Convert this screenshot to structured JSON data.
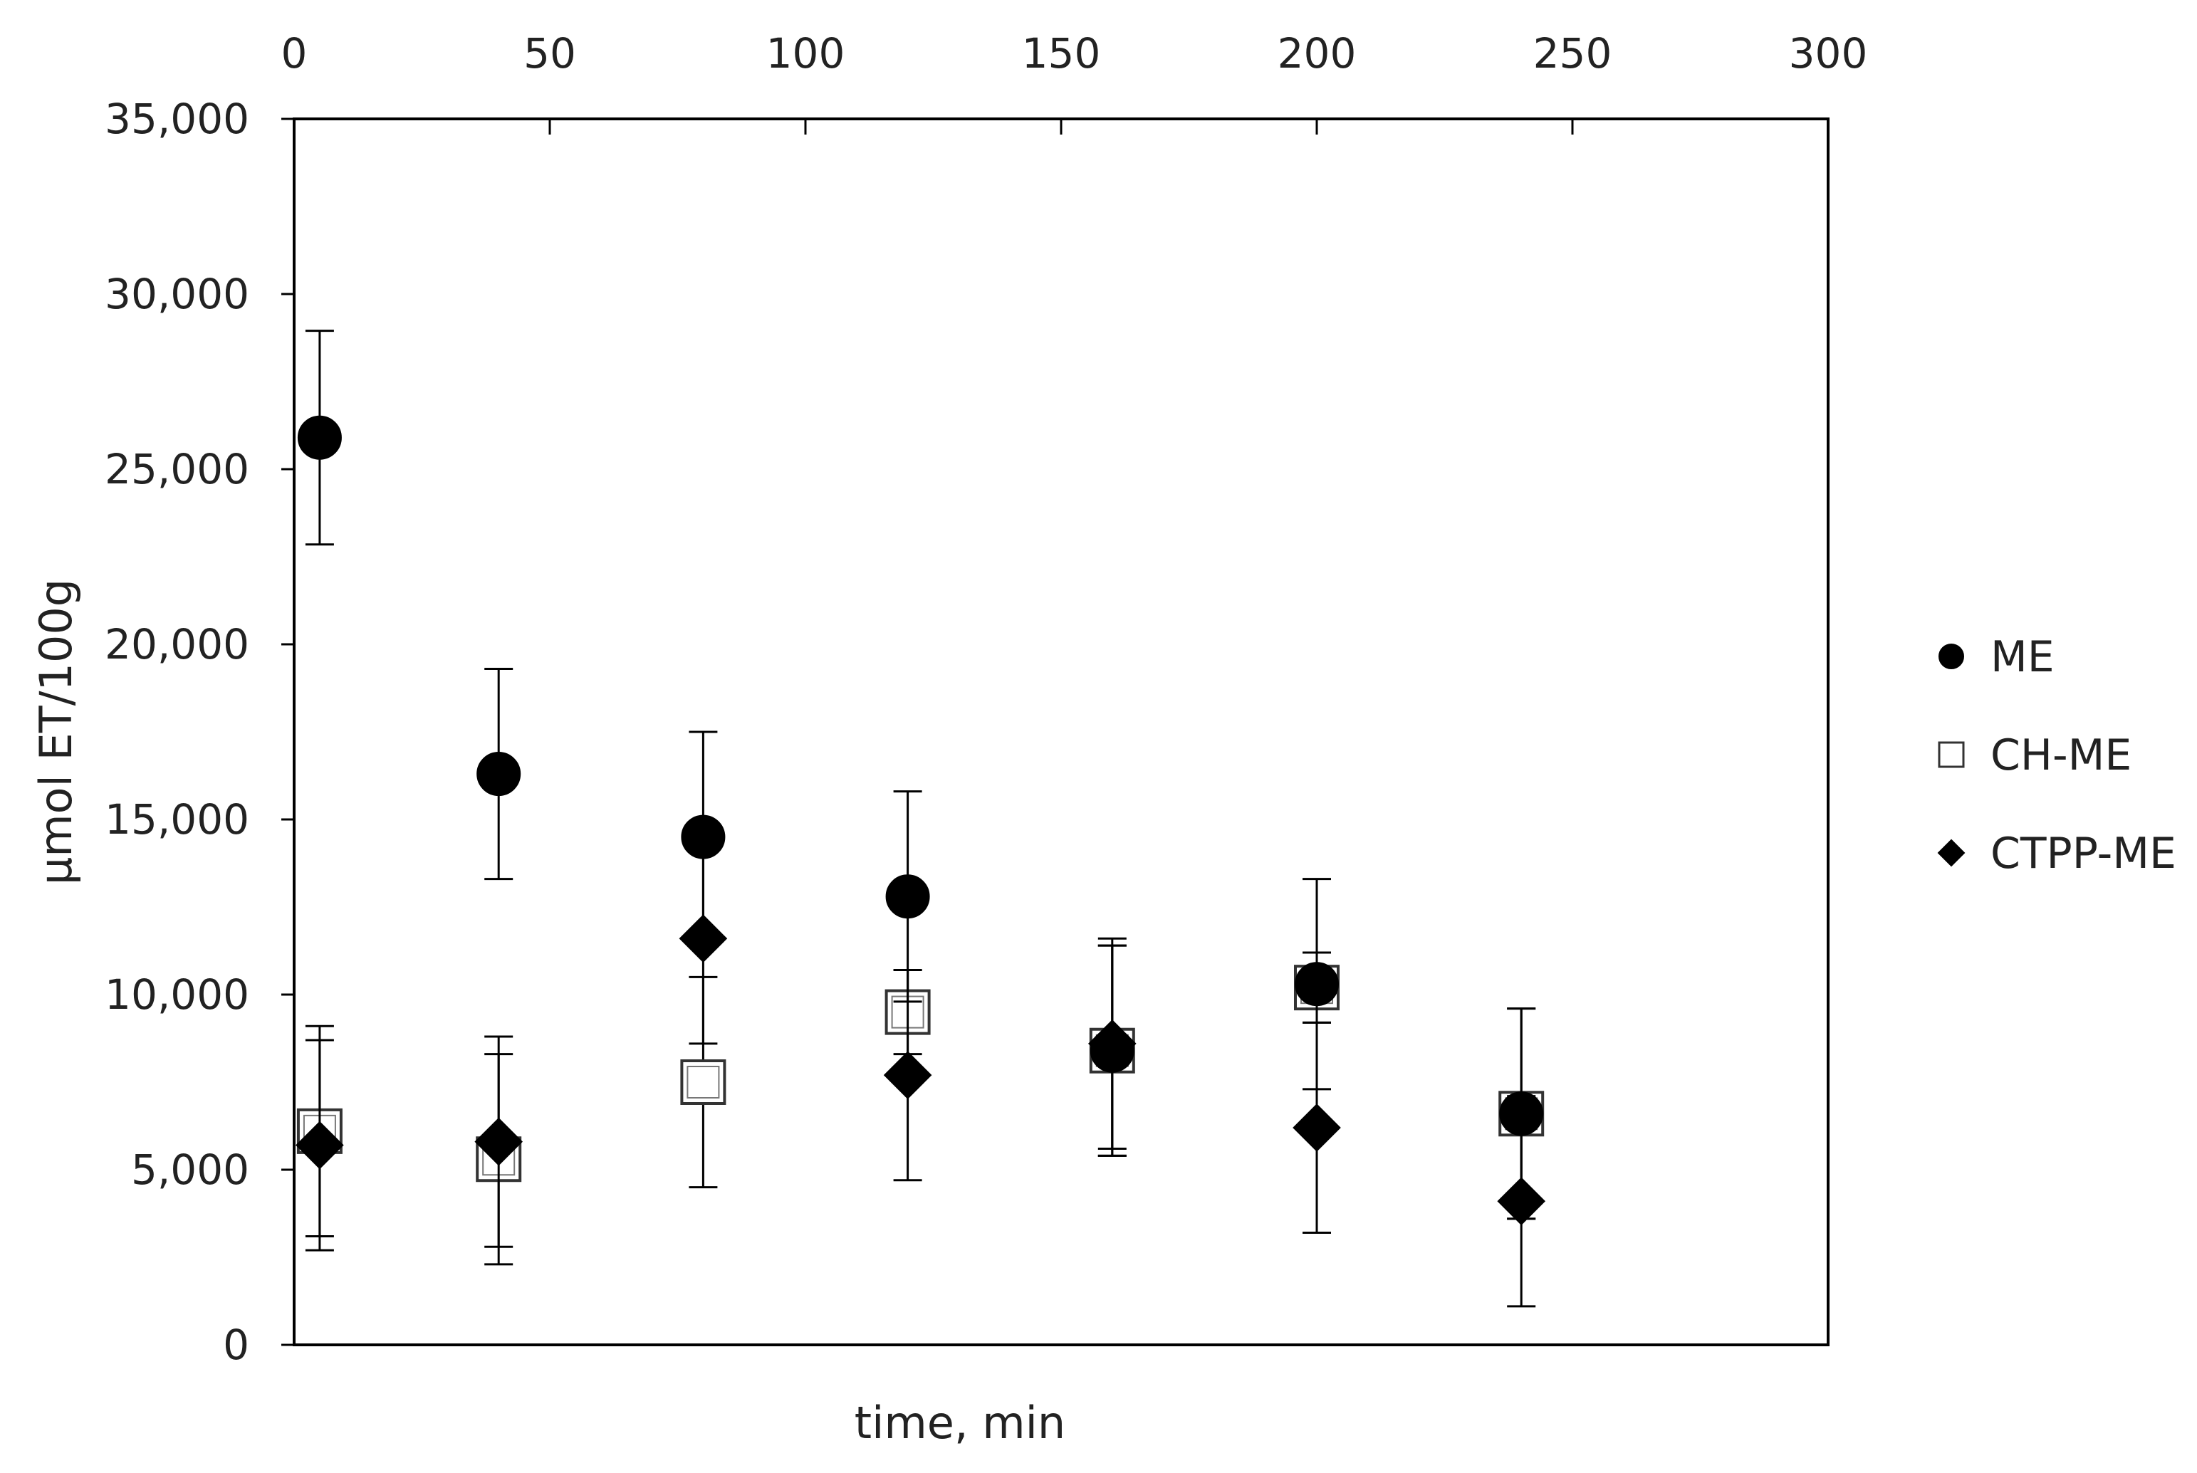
{
  "chart_data": {
    "type": "scatter",
    "title": "",
    "xlabel": "time, min",
    "ylabel": "µmol ET/100g",
    "xlim": [
      0,
      300
    ],
    "ylim": [
      0,
      35000
    ],
    "x_ticks": [
      0,
      50,
      100,
      150,
      200,
      250,
      300
    ],
    "x_tick_labels": [
      "0",
      "50",
      "100",
      "150",
      "200",
      "250",
      "300"
    ],
    "x_axis_position": "top",
    "y_ticks": [
      0,
      5000,
      10000,
      15000,
      20000,
      25000,
      30000,
      35000
    ],
    "y_tick_labels": [
      "0",
      "5,000",
      "10,000",
      "15,000",
      "20,000",
      "25,000",
      "30,000",
      "35,000"
    ],
    "grid": false,
    "legend_position": "right",
    "error_bars": true,
    "series": [
      {
        "name": "ME",
        "marker": "filled-circle",
        "color": "#000000",
        "x": [
          5,
          40,
          80,
          120,
          160,
          200,
          240
        ],
        "y": [
          25900,
          16300,
          14500,
          12800,
          8400,
          10300,
          6600
        ],
        "error": [
          3050,
          3000,
          3000,
          3000,
          3000,
          3000,
          3000
        ]
      },
      {
        "name": "CH-ME",
        "marker": "open-square",
        "color": "#000000",
        "x": [
          5,
          40,
          80,
          120,
          160,
          200,
          240
        ],
        "y": [
          6100,
          5300,
          7500,
          9500,
          8400,
          10200,
          6600
        ],
        "error": [
          3000,
          3000,
          3000,
          1200,
          3000,
          1000,
          3000
        ]
      },
      {
        "name": "CTPP-ME",
        "marker": "filled-diamond",
        "color": "#000000",
        "x": [
          5,
          40,
          80,
          120,
          160,
          200,
          240
        ],
        "y": [
          5700,
          5800,
          11600,
          7700,
          8600,
          6200,
          4100
        ],
        "error": [
          3000,
          3000,
          3000,
          3000,
          3000,
          3000,
          3000
        ]
      }
    ]
  }
}
